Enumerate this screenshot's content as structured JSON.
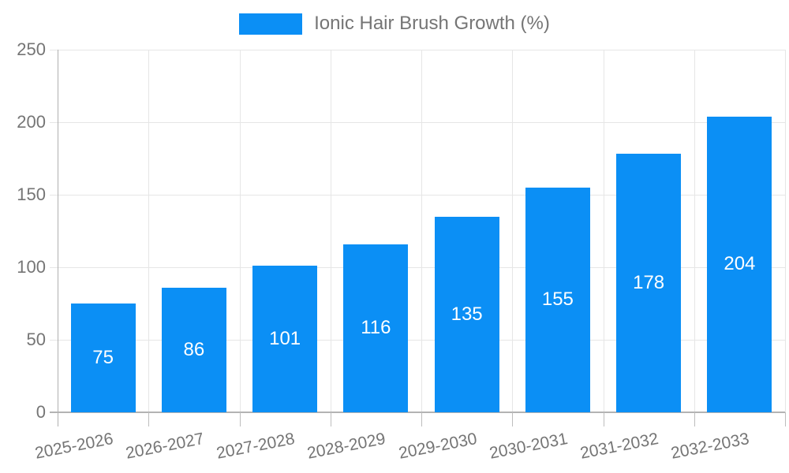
{
  "legend": {
    "label": "Ionic Hair Brush Growth (%)"
  },
  "chart_data": {
    "type": "bar",
    "title": "Ionic Hair Brush Growth (%)",
    "categories": [
      "2025-2026",
      "2026-2027",
      "2027-2028",
      "2028-2029",
      "2029-2030",
      "2030-2031",
      "2031-2032",
      "2032-2033"
    ],
    "values": [
      75,
      86,
      101,
      116,
      135,
      155,
      178,
      204
    ],
    "xlabel": "",
    "ylabel": "",
    "ylim": [
      0,
      250
    ],
    "yticks": [
      0,
      50,
      100,
      150,
      200,
      250
    ],
    "grid": true,
    "legend_position": "top-center",
    "value_labels": "inside-center",
    "colors": {
      "bar": "#0b8ff5",
      "value_label": "#ffffff",
      "axis_text": "#757575",
      "gridline": "#e6e6e6",
      "axis_line": "#b0b0b0"
    }
  }
}
